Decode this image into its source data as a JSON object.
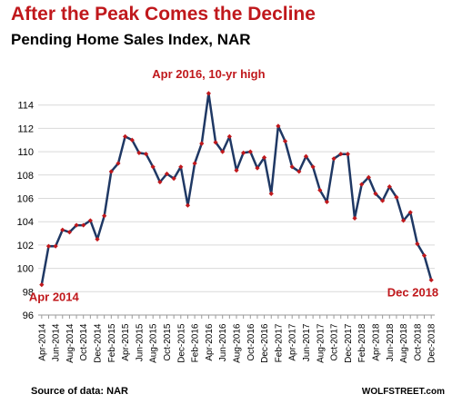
{
  "header": {
    "title": "After the Peak Comes the Decline",
    "subtitle": "Pending Home Sales Index, NAR"
  },
  "footer": {
    "source": "Source of data: NAR",
    "watermark": "WOLFSTREET.com"
  },
  "colors": {
    "title": "#c0181c",
    "line": "#1f3864",
    "marker": "#c0181c",
    "annotation": "#c0181c",
    "grid": "#d9d9d9"
  },
  "chart_data": {
    "type": "line",
    "title": "Pending Home Sales Index, NAR",
    "xlabel": "",
    "ylabel": "",
    "ylim": [
      96,
      116
    ],
    "yticks": [
      96,
      98,
      100,
      102,
      104,
      106,
      108,
      110,
      112,
      114
    ],
    "grid": "horizontal",
    "marker": "diamond",
    "tick_labels": [
      "Apr-2014",
      "Jun-2014",
      "Aug-2014",
      "Oct-2014",
      "Dec-2014",
      "Feb-2015",
      "Apr-2015",
      "Jun-2015",
      "Aug-2015",
      "Oct-2015",
      "Dec-2015",
      "Feb-2016",
      "Apr-2016",
      "Jun-2016",
      "Aug-2016",
      "Oct-2016",
      "Dec-2016",
      "Feb-2017",
      "Apr-2017",
      "Jun-2017",
      "Aug-2017",
      "Oct-2017",
      "Dec-2017",
      "Feb-2018",
      "Apr-2018",
      "Jun-2018",
      "Aug-2018",
      "Oct-2018",
      "Dec-2018"
    ],
    "x": [
      "Apr-2014",
      "May-2014",
      "Jun-2014",
      "Jul-2014",
      "Aug-2014",
      "Sep-2014",
      "Oct-2014",
      "Nov-2014",
      "Dec-2014",
      "Jan-2015",
      "Feb-2015",
      "Mar-2015",
      "Apr-2015",
      "May-2015",
      "Jun-2015",
      "Jul-2015",
      "Aug-2015",
      "Sep-2015",
      "Oct-2015",
      "Nov-2015",
      "Dec-2015",
      "Jan-2016",
      "Feb-2016",
      "Mar-2016",
      "Apr-2016",
      "May-2016",
      "Jun-2016",
      "Jul-2016",
      "Aug-2016",
      "Sep-2016",
      "Oct-2016",
      "Nov-2016",
      "Dec-2016",
      "Jan-2017",
      "Feb-2017",
      "Mar-2017",
      "Apr-2017",
      "May-2017",
      "Jun-2017",
      "Jul-2017",
      "Aug-2017",
      "Sep-2017",
      "Oct-2017",
      "Nov-2017",
      "Dec-2017",
      "Jan-2018",
      "Feb-2018",
      "Mar-2018",
      "Apr-2018",
      "May-2018",
      "Jun-2018",
      "Jul-2018",
      "Aug-2018",
      "Sep-2018",
      "Oct-2018",
      "Nov-2018",
      "Dec-2018"
    ],
    "series": [
      {
        "values": [
          98.6,
          101.9,
          101.9,
          103.3,
          103.1,
          103.7,
          103.7,
          104.1,
          102.5,
          104.5,
          108.3,
          109.0,
          111.3,
          111.0,
          109.9,
          109.8,
          108.7,
          107.4,
          108.1,
          107.7,
          108.7,
          105.4,
          109.0,
          110.7,
          115.0,
          110.8,
          110.0,
          111.3,
          108.4,
          109.9,
          110.0,
          108.6,
          109.5,
          106.4,
          112.2,
          110.9,
          108.7,
          108.3,
          109.6,
          108.7,
          106.7,
          105.7,
          109.4,
          109.8,
          109.8,
          104.3,
          107.2,
          107.8,
          106.4,
          105.8,
          107.0,
          106.1,
          104.1,
          104.8,
          102.1,
          101.1,
          99.0
        ]
      }
    ],
    "annotations": [
      {
        "text": "Apr 2016, 10-yr high",
        "x": "Apr-2016",
        "y": 115.0
      },
      {
        "text": "Apr 2014",
        "x": "Apr-2014",
        "y": 98.6
      },
      {
        "text": "Dec 2018",
        "x": "Dec-2018",
        "y": 99.0
      }
    ]
  }
}
